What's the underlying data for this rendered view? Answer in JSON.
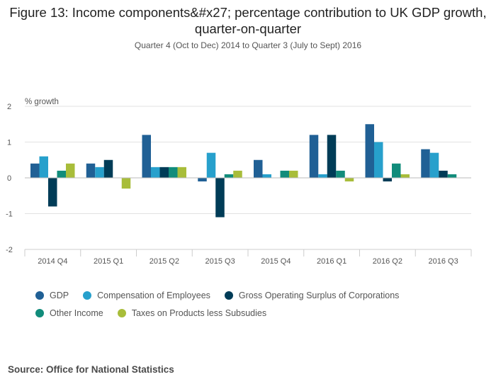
{
  "chart_data": {
    "type": "bar",
    "title": "Figure 13: Income components&#x27; percentage contribution to UK GDP growth, quarter-on-quarter",
    "subtitle": "Quarter 4 (Oct to Dec) 2014 to Quarter 3 (July to Sept) 2016",
    "ylabel": "% growth",
    "xlabel": "",
    "ylim": [
      -2,
      2
    ],
    "yticks": [
      2,
      1,
      0,
      -1,
      -2
    ],
    "grid": true,
    "legend_position": "bottom",
    "categories": [
      "2014 Q4",
      "2015 Q1",
      "2015 Q2",
      "2015 Q3",
      "2015 Q4",
      "2016 Q1",
      "2016 Q2",
      "2016 Q3"
    ],
    "series": [
      {
        "name": "GDP",
        "color": "#206095",
        "values": [
          0.4,
          0.4,
          1.2,
          -0.1,
          0.5,
          1.2,
          1.5,
          0.8
        ]
      },
      {
        "name": "Compensation of Employees",
        "color": "#27a0cc",
        "values": [
          0.6,
          0.3,
          0.3,
          0.7,
          0.1,
          0.1,
          1.0,
          0.7
        ]
      },
      {
        "name": "Gross Operating Surplus of Corporations",
        "color": "#003c57",
        "values": [
          -0.8,
          0.5,
          0.3,
          -1.1,
          0.0,
          1.2,
          -0.1,
          0.2
        ]
      },
      {
        "name": "Other Income",
        "color": "#118c7b",
        "values": [
          0.2,
          0.0,
          0.3,
          0.1,
          0.2,
          0.2,
          0.4,
          0.1
        ]
      },
      {
        "name": "Taxes on Products less Subsudies",
        "color": "#a8bd3a",
        "values": [
          0.4,
          -0.3,
          0.3,
          0.2,
          0.2,
          -0.1,
          0.1,
          0.0
        ]
      }
    ]
  },
  "source": "Source: Office for National Statistics"
}
